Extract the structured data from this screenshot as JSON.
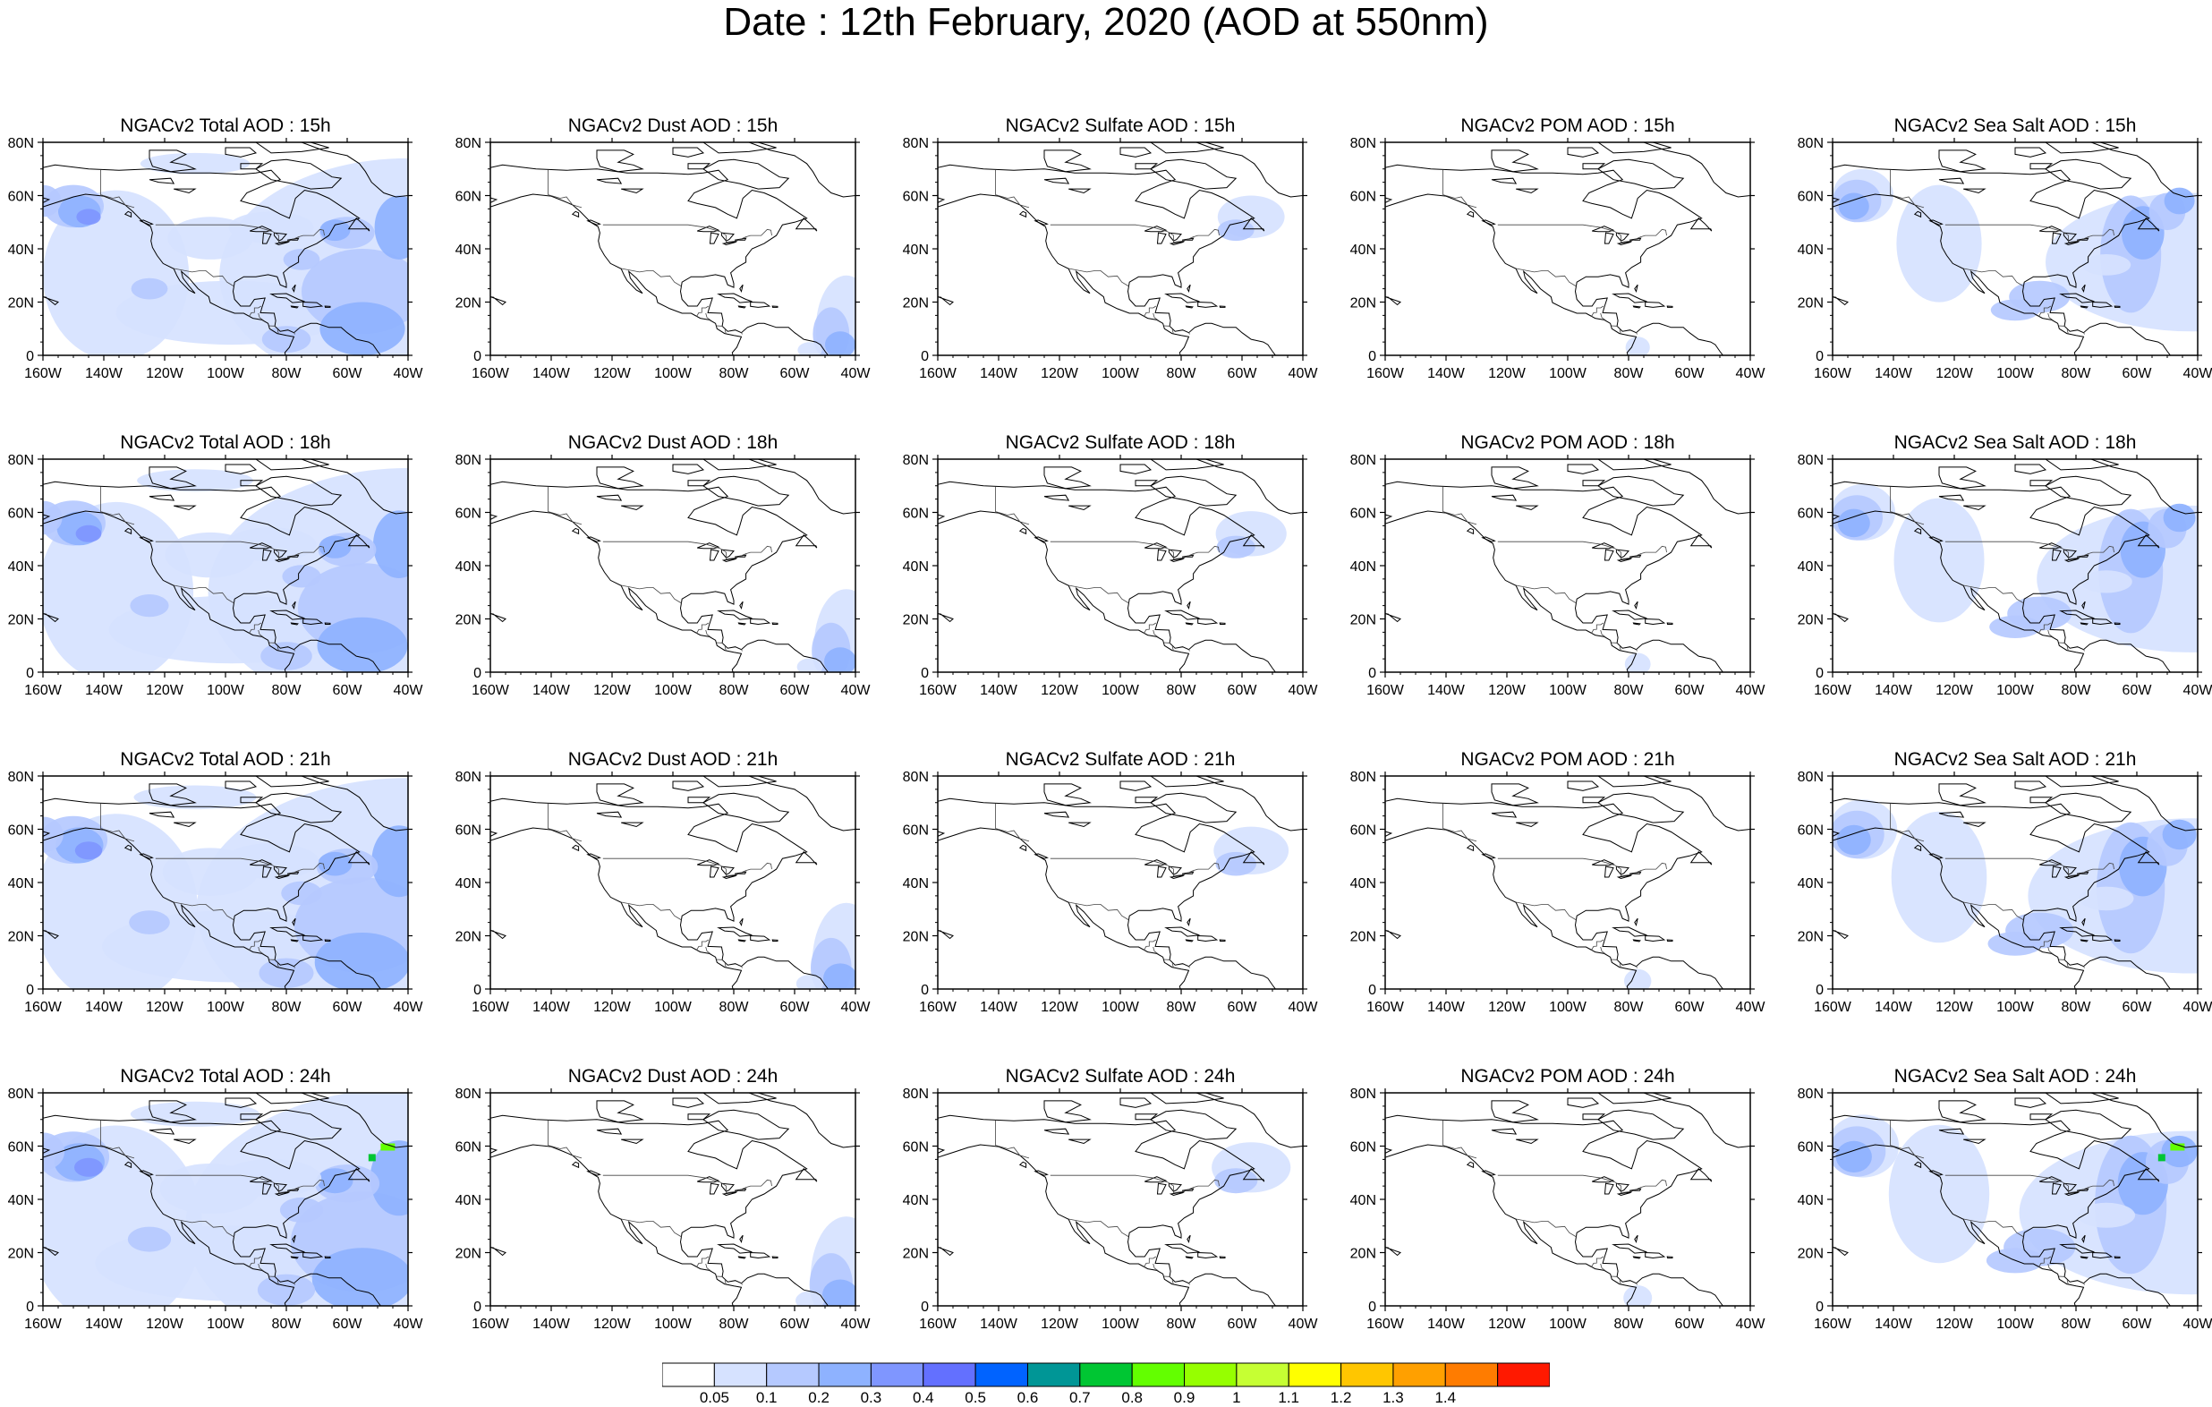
{
  "title": "Date : 12th February, 2020 (AOD at 550nm)",
  "panels": [
    [
      {
        "title": "NGACv2 Total AOD : 15h",
        "field": "total"
      },
      {
        "title": "NGACv2 Dust AOD : 15h",
        "field": "dust"
      },
      {
        "title": "NGACv2 Sulfate AOD : 15h",
        "field": "sulfate"
      },
      {
        "title": "NGACv2 POM AOD : 15h",
        "field": "pom"
      },
      {
        "title": "NGACv2 Sea Salt AOD : 15h",
        "field": "seasalt"
      }
    ],
    [
      {
        "title": "NGACv2 Total AOD : 18h",
        "field": "total"
      },
      {
        "title": "NGACv2 Dust AOD : 18h",
        "field": "dust"
      },
      {
        "title": "NGACv2 Sulfate AOD : 18h",
        "field": "sulfate"
      },
      {
        "title": "NGACv2 POM AOD : 18h",
        "field": "pom"
      },
      {
        "title": "NGACv2 Sea Salt AOD : 18h",
        "field": "seasalt"
      }
    ],
    [
      {
        "title": "NGACv2 Total AOD : 21h",
        "field": "total"
      },
      {
        "title": "NGACv2 Dust AOD : 21h",
        "field": "dust"
      },
      {
        "title": "NGACv2 Sulfate AOD : 21h",
        "field": "sulfate"
      },
      {
        "title": "NGACv2 POM AOD : 21h",
        "field": "pom"
      },
      {
        "title": "NGACv2 Sea Salt AOD : 21h",
        "field": "seasalt"
      }
    ],
    [
      {
        "title": "NGACv2 Total AOD : 24h",
        "field": "total"
      },
      {
        "title": "NGACv2 Dust AOD : 24h",
        "field": "dust"
      },
      {
        "title": "NGACv2 Sulfate AOD : 24h",
        "field": "sulfate"
      },
      {
        "title": "NGACv2 POM AOD : 24h",
        "field": "pom"
      },
      {
        "title": "NGACv2 Sea Salt  AOD : 24h",
        "field": "seasalt"
      }
    ]
  ],
  "x_ticks": [
    "160W",
    "140W",
    "120W",
    "100W",
    "80W",
    "60W",
    "40W"
  ],
  "y_ticks": [
    "0",
    "20N",
    "40N",
    "60N",
    "80N"
  ],
  "lon_range": [
    -160,
    -40
  ],
  "lat_range": [
    0,
    80
  ],
  "colorbar": {
    "colors": [
      "#ffffff",
      "#d6e2ff",
      "#b5c9ff",
      "#8eb2ff",
      "#7f96ff",
      "#6370ff",
      "#0063ff",
      "#009696",
      "#00c633",
      "#63ff00",
      "#96ff00",
      "#c6ff33",
      "#ffff00",
      "#ffc600",
      "#ffa000",
      "#ff7c00",
      "#ff1900"
    ],
    "labels": [
      "0.05",
      "0.1",
      "0.2",
      "0.3",
      "0.4",
      "0.5",
      "0.6",
      "0.7",
      "0.8",
      "0.9",
      "1",
      "1.1",
      "1.2",
      "1.3",
      "1.4"
    ]
  }
}
